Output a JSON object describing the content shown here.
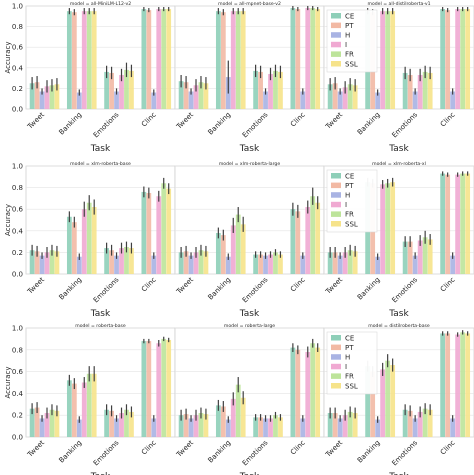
{
  "chart_data": {
    "type": "bar",
    "layout_grid": "3x3",
    "ylim": [
      0,
      1.0
    ],
    "yticks": [
      "0.0",
      "0.2",
      "0.4",
      "0.6",
      "0.8",
      "1.0"
    ],
    "ylabel": "Accuracy",
    "xlabel": "Task",
    "categories": [
      "Tweet",
      "Banking",
      "Emotions",
      "Clinc"
    ],
    "series": [
      {
        "name": "CE",
        "color": "#8ecfb8"
      },
      {
        "name": "PT",
        "color": "#f2b9a4"
      },
      {
        "name": "H",
        "color": "#a9b3e3"
      },
      {
        "name": "I",
        "color": "#f0a9d2"
      },
      {
        "name": "FR",
        "color": "#bde49a"
      },
      {
        "name": "SSL",
        "color": "#f6e38a"
      }
    ],
    "grid": true,
    "legend_position": "top-right of last panel in each row",
    "panels": [
      {
        "title": "model = all-MiniLM-L12-v2",
        "values": [
          [
            0.25,
            0.95,
            0.36,
            0.97
          ],
          [
            0.26,
            0.94,
            0.35,
            0.96
          ],
          [
            0.17,
            0.16,
            0.17,
            0.16
          ],
          [
            0.22,
            0.95,
            0.33,
            0.97
          ],
          [
            0.23,
            0.95,
            0.38,
            0.97
          ],
          [
            0.24,
            0.95,
            0.37,
            0.97
          ]
        ],
        "errors": [
          [
            0.06,
            0.03,
            0.06,
            0.02
          ],
          [
            0.06,
            0.03,
            0.06,
            0.02
          ],
          [
            0.03,
            0.03,
            0.03,
            0.03
          ],
          [
            0.06,
            0.03,
            0.06,
            0.02
          ],
          [
            0.06,
            0.03,
            0.07,
            0.02
          ],
          [
            0.06,
            0.03,
            0.06,
            0.02
          ]
        ]
      },
      {
        "title": "model = all-mpnet-base-v2",
        "values": [
          [
            0.27,
            0.95,
            0.37,
            0.98
          ],
          [
            0.26,
            0.94,
            0.36,
            0.97
          ],
          [
            0.17,
            0.31,
            0.17,
            0.17
          ],
          [
            0.23,
            0.95,
            0.34,
            0.98
          ],
          [
            0.26,
            0.95,
            0.37,
            0.98
          ],
          [
            0.25,
            0.95,
            0.36,
            0.97
          ]
        ],
        "errors": [
          [
            0.06,
            0.03,
            0.06,
            0.02
          ],
          [
            0.06,
            0.03,
            0.06,
            0.02
          ],
          [
            0.03,
            0.16,
            0.03,
            0.03
          ],
          [
            0.06,
            0.03,
            0.06,
            0.02
          ],
          [
            0.06,
            0.03,
            0.06,
            0.02
          ],
          [
            0.06,
            0.03,
            0.06,
            0.02
          ]
        ]
      },
      {
        "title": "model = all-distilroberta-v1",
        "values": [
          [
            0.24,
            0.95,
            0.35,
            0.97
          ],
          [
            0.25,
            0.94,
            0.33,
            0.96
          ],
          [
            0.17,
            0.16,
            0.17,
            0.17
          ],
          [
            0.21,
            0.95,
            0.33,
            0.97
          ],
          [
            0.24,
            0.95,
            0.36,
            0.97
          ],
          [
            0.23,
            0.95,
            0.35,
            0.97
          ]
        ],
        "errors": [
          [
            0.06,
            0.03,
            0.06,
            0.02
          ],
          [
            0.06,
            0.03,
            0.06,
            0.02
          ],
          [
            0.03,
            0.03,
            0.03,
            0.03
          ],
          [
            0.06,
            0.03,
            0.06,
            0.02
          ],
          [
            0.06,
            0.03,
            0.06,
            0.02
          ],
          [
            0.06,
            0.03,
            0.06,
            0.02
          ]
        ]
      },
      {
        "title": "model = xlm-roberta-base",
        "values": [
          [
            0.22,
            0.53,
            0.24,
            0.76
          ],
          [
            0.21,
            0.48,
            0.22,
            0.75
          ],
          [
            0.17,
            0.16,
            0.17,
            0.17
          ],
          [
            0.2,
            0.6,
            0.24,
            0.72
          ],
          [
            0.22,
            0.66,
            0.25,
            0.84
          ],
          [
            0.21,
            0.62,
            0.24,
            0.79
          ]
        ],
        "errors": [
          [
            0.05,
            0.05,
            0.05,
            0.05
          ],
          [
            0.05,
            0.05,
            0.05,
            0.05
          ],
          [
            0.03,
            0.03,
            0.03,
            0.03
          ],
          [
            0.05,
            0.07,
            0.05,
            0.05
          ],
          [
            0.05,
            0.07,
            0.05,
            0.05
          ],
          [
            0.05,
            0.07,
            0.05,
            0.05
          ]
        ]
      },
      {
        "title": "model = xlm-roberta-large",
        "values": [
          [
            0.2,
            0.38,
            0.18,
            0.6
          ],
          [
            0.21,
            0.36,
            0.18,
            0.58
          ],
          [
            0.17,
            0.16,
            0.17,
            0.17
          ],
          [
            0.2,
            0.45,
            0.18,
            0.62
          ],
          [
            0.22,
            0.55,
            0.2,
            0.72
          ],
          [
            0.21,
            0.46,
            0.18,
            0.66
          ]
        ],
        "errors": [
          [
            0.05,
            0.05,
            0.03,
            0.06
          ],
          [
            0.05,
            0.05,
            0.03,
            0.06
          ],
          [
            0.03,
            0.03,
            0.03,
            0.03
          ],
          [
            0.05,
            0.07,
            0.03,
            0.06
          ],
          [
            0.05,
            0.07,
            0.03,
            0.08
          ],
          [
            0.05,
            0.07,
            0.03,
            0.06
          ]
        ]
      },
      {
        "title": "model = xlm-roberta-xl",
        "values": [
          [
            0.2,
            0.85,
            0.3,
            0.93
          ],
          [
            0.2,
            0.84,
            0.3,
            0.92
          ],
          [
            0.17,
            0.16,
            0.17,
            0.17
          ],
          [
            0.2,
            0.83,
            0.31,
            0.92
          ],
          [
            0.22,
            0.84,
            0.34,
            0.93
          ],
          [
            0.21,
            0.85,
            0.32,
            0.93
          ]
        ],
        "errors": [
          [
            0.05,
            0.04,
            0.05,
            0.02
          ],
          [
            0.05,
            0.04,
            0.05,
            0.02
          ],
          [
            0.03,
            0.03,
            0.03,
            0.03
          ],
          [
            0.05,
            0.04,
            0.05,
            0.02
          ],
          [
            0.05,
            0.04,
            0.06,
            0.02
          ],
          [
            0.05,
            0.04,
            0.05,
            0.02
          ]
        ]
      },
      {
        "title": "model = roberta-base",
        "values": [
          [
            0.26,
            0.52,
            0.25,
            0.88
          ],
          [
            0.27,
            0.49,
            0.24,
            0.88
          ],
          [
            0.17,
            0.16,
            0.17,
            0.17
          ],
          [
            0.22,
            0.5,
            0.22,
            0.86
          ],
          [
            0.25,
            0.58,
            0.25,
            0.9
          ],
          [
            0.24,
            0.58,
            0.23,
            0.89
          ]
        ],
        "errors": [
          [
            0.05,
            0.05,
            0.05,
            0.02
          ],
          [
            0.05,
            0.05,
            0.05,
            0.02
          ],
          [
            0.03,
            0.03,
            0.03,
            0.03
          ],
          [
            0.05,
            0.05,
            0.05,
            0.03
          ],
          [
            0.05,
            0.07,
            0.05,
            0.02
          ],
          [
            0.05,
            0.07,
            0.05,
            0.02
          ]
        ]
      },
      {
        "title": "model = roberta-large",
        "values": [
          [
            0.2,
            0.29,
            0.18,
            0.82
          ],
          [
            0.21,
            0.28,
            0.18,
            0.8
          ],
          [
            0.17,
            0.16,
            0.17,
            0.17
          ],
          [
            0.2,
            0.35,
            0.17,
            0.78
          ],
          [
            0.22,
            0.48,
            0.2,
            0.86
          ],
          [
            0.21,
            0.36,
            0.18,
            0.82
          ]
        ],
        "errors": [
          [
            0.05,
            0.05,
            0.03,
            0.04
          ],
          [
            0.05,
            0.05,
            0.03,
            0.04
          ],
          [
            0.03,
            0.03,
            0.03,
            0.03
          ],
          [
            0.05,
            0.06,
            0.03,
            0.05
          ],
          [
            0.05,
            0.07,
            0.03,
            0.04
          ],
          [
            0.05,
            0.06,
            0.03,
            0.04
          ]
        ]
      },
      {
        "title": "model = distilroberta-base",
        "values": [
          [
            0.22,
            0.65,
            0.25,
            0.95
          ],
          [
            0.22,
            0.6,
            0.24,
            0.95
          ],
          [
            0.17,
            0.16,
            0.17,
            0.17
          ],
          [
            0.2,
            0.62,
            0.23,
            0.94
          ],
          [
            0.23,
            0.7,
            0.26,
            0.96
          ],
          [
            0.22,
            0.66,
            0.25,
            0.95
          ]
        ],
        "errors": [
          [
            0.05,
            0.05,
            0.05,
            0.02
          ],
          [
            0.05,
            0.05,
            0.05,
            0.02
          ],
          [
            0.03,
            0.03,
            0.03,
            0.03
          ],
          [
            0.05,
            0.06,
            0.05,
            0.02
          ],
          [
            0.05,
            0.06,
            0.05,
            0.02
          ],
          [
            0.05,
            0.06,
            0.05,
            0.02
          ]
        ]
      }
    ]
  }
}
